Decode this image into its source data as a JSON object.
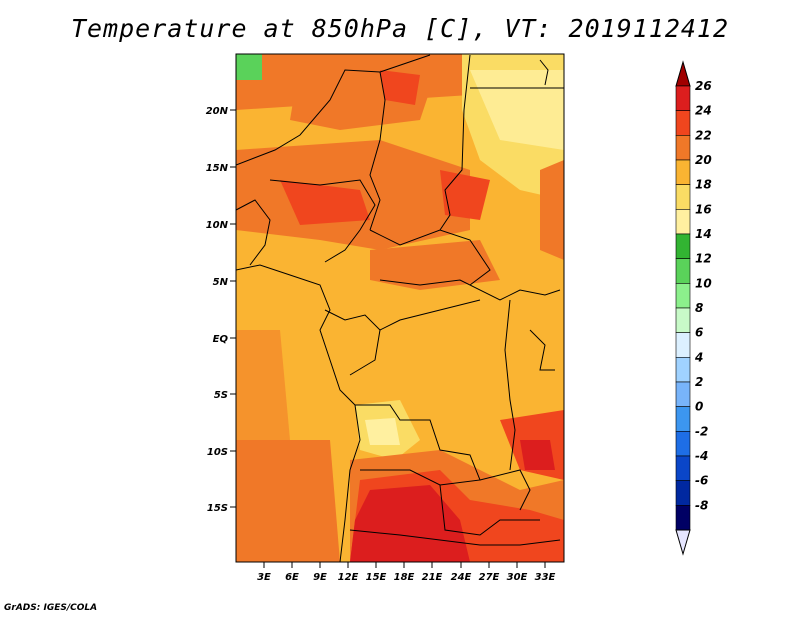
{
  "title": "Temperature at 850hPa [C], VT: 2019112412",
  "credit": "GrADS: IGES/COLA",
  "map": {
    "lon_ticks": [
      "3E",
      "6E",
      "9E",
      "12E",
      "15E",
      "18E",
      "21E",
      "24E",
      "27E",
      "30E",
      "33E"
    ],
    "lat_ticks": [
      "20N",
      "15N",
      "10N",
      "5N",
      "EQ",
      "5S",
      "10S",
      "15S"
    ]
  },
  "colorbar": {
    "labels": [
      "26",
      "24",
      "22",
      "20",
      "18",
      "16",
      "14",
      "12",
      "10",
      "8",
      "6",
      "4",
      "2",
      "0",
      "-2",
      "-4",
      "-6",
      "-8"
    ],
    "colors": [
      "#a00000",
      "#dc1e1e",
      "#f0461e",
      "#f07828",
      "#fab432",
      "#fadc64",
      "#fff0a0",
      "#32b432",
      "#5ad25a",
      "#8cf08c",
      "#c8fac8",
      "#dcf0ff",
      "#a0d2ff",
      "#78b4fa",
      "#3c96f0",
      "#1e6ee6",
      "#0a46c8",
      "#0028a0",
      "#000064",
      "#e6e6ff"
    ]
  }
}
